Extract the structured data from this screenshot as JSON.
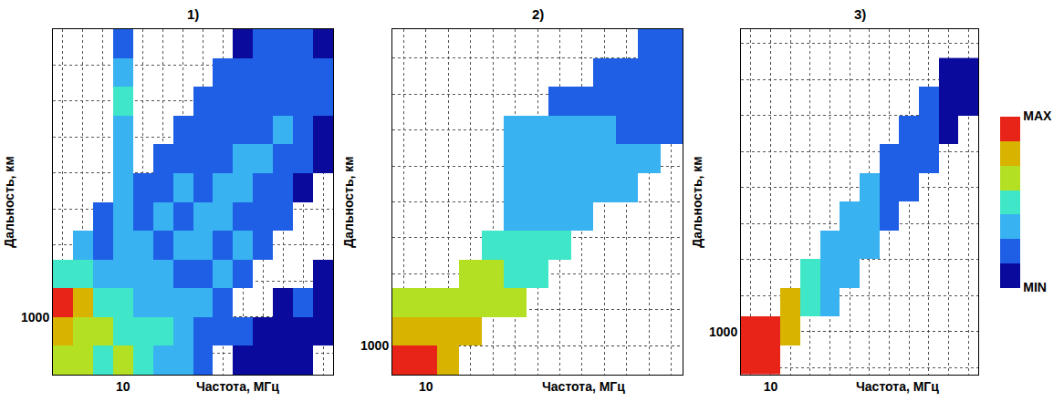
{
  "chart_data": [
    {
      "type": "heatmap",
      "title": "1)",
      "xlabel": "Частота, МГц",
      "ylabel": "Дальность, км",
      "xlim": [
        6.5,
        20.5
      ],
      "ylim": [
        600,
        3000
      ],
      "xticks": [
        10
      ],
      "yticks": [
        1000
      ],
      "grid": true,
      "x": [
        7,
        8,
        9,
        10,
        11,
        12,
        13,
        14,
        15,
        16,
        17,
        18,
        19,
        20
      ],
      "y": [
        700,
        900,
        1100,
        1300,
        1500,
        1700,
        1900,
        2100,
        2300,
        2500,
        2700,
        2900
      ],
      "z": [
        [
          5,
          5,
          4,
          5,
          4,
          3,
          3,
          2,
          null,
          1,
          1,
          1,
          1,
          null
        ],
        [
          6,
          5,
          5,
          4,
          4,
          4,
          3,
          2,
          2,
          2,
          1,
          1,
          1,
          1
        ],
        [
          7,
          6,
          4,
          4,
          3,
          3,
          3,
          3,
          2,
          null,
          null,
          1,
          2,
          1
        ],
        [
          4,
          4,
          3,
          3,
          3,
          3,
          2,
          2,
          3,
          2,
          null,
          null,
          null,
          1
        ],
        [
          null,
          3,
          2,
          3,
          3,
          2,
          3,
          3,
          2,
          3,
          2,
          null,
          null,
          null
        ],
        [
          null,
          null,
          2,
          3,
          2,
          3,
          2,
          3,
          3,
          2,
          2,
          2,
          null,
          null
        ],
        [
          null,
          null,
          null,
          3,
          2,
          2,
          3,
          2,
          3,
          3,
          2,
          2,
          1,
          null
        ],
        [
          null,
          null,
          null,
          3,
          null,
          2,
          2,
          2,
          2,
          3,
          3,
          2,
          2,
          1
        ],
        [
          null,
          null,
          null,
          3,
          null,
          null,
          2,
          2,
          2,
          2,
          2,
          3,
          2,
          1
        ],
        [
          null,
          null,
          null,
          4,
          null,
          null,
          null,
          2,
          2,
          2,
          2,
          2,
          2,
          2
        ],
        [
          null,
          null,
          null,
          3,
          null,
          null,
          null,
          null,
          2,
          2,
          2,
          2,
          2,
          2
        ],
        [
          null,
          null,
          null,
          2,
          null,
          null,
          null,
          null,
          null,
          1,
          2,
          2,
          2,
          1
        ]
      ]
    },
    {
      "type": "heatmap",
      "title": "2)",
      "xlabel": "Частота, МГц",
      "ylabel": "Дальность, км",
      "xlim": [
        8.5,
        21.5
      ],
      "ylim": [
        800,
        3200
      ],
      "xticks": [
        10
      ],
      "yticks": [
        1000
      ],
      "grid": true,
      "x": [
        9,
        10,
        11,
        12,
        13,
        14,
        15,
        16,
        17,
        18,
        19,
        20,
        21
      ],
      "y": [
        900,
        1100,
        1300,
        1500,
        1700,
        1900,
        2100,
        2300,
        2500,
        2700,
        2900,
        3100
      ],
      "z": [
        [
          7,
          7,
          6,
          null,
          null,
          null,
          null,
          null,
          null,
          null,
          null,
          null,
          null
        ],
        [
          6,
          6,
          6,
          6,
          null,
          null,
          null,
          null,
          null,
          null,
          null,
          null,
          null
        ],
        [
          5,
          5,
          5,
          5,
          5,
          5,
          null,
          null,
          null,
          null,
          null,
          null,
          null
        ],
        [
          null,
          null,
          null,
          5,
          5,
          4,
          4,
          null,
          null,
          null,
          null,
          null,
          null
        ],
        [
          null,
          null,
          null,
          null,
          4,
          4,
          4,
          4,
          null,
          null,
          null,
          null,
          null
        ],
        [
          null,
          null,
          null,
          null,
          null,
          3,
          3,
          3,
          3,
          null,
          null,
          null,
          null
        ],
        [
          null,
          null,
          null,
          null,
          null,
          3,
          3,
          3,
          3,
          3,
          3,
          null,
          null
        ],
        [
          null,
          null,
          null,
          null,
          null,
          3,
          3,
          3,
          3,
          3,
          3,
          3,
          null
        ],
        [
          null,
          null,
          null,
          null,
          null,
          3,
          3,
          3,
          3,
          3,
          2,
          2,
          2
        ],
        [
          null,
          null,
          null,
          null,
          null,
          null,
          null,
          2,
          2,
          2,
          2,
          2,
          2
        ],
        [
          null,
          null,
          null,
          null,
          null,
          null,
          null,
          null,
          null,
          2,
          2,
          2,
          2
        ],
        [
          null,
          null,
          null,
          null,
          null,
          null,
          null,
          null,
          null,
          null,
          null,
          2,
          2
        ]
      ]
    },
    {
      "type": "heatmap",
      "title": "3)",
      "xlabel": "Частота, МГц",
      "ylabel": "Дальность, км",
      "xlim": [
        8.5,
        20.5
      ],
      "ylim": [
        700,
        3100
      ],
      "xticks": [
        10
      ],
      "yticks": [
        1000
      ],
      "grid": true,
      "x": [
        9,
        10,
        11,
        12,
        13,
        14,
        15,
        16,
        17,
        18,
        19,
        20
      ],
      "y": [
        800,
        1000,
        1200,
        1400,
        1600,
        1800,
        2000,
        2200,
        2400,
        2600,
        2800
      ],
      "z": [
        [
          7,
          7,
          null,
          null,
          null,
          null,
          null,
          null,
          null,
          null,
          null,
          null
        ],
        [
          7,
          7,
          6,
          null,
          null,
          null,
          null,
          null,
          null,
          null,
          null,
          null
        ],
        [
          null,
          null,
          6,
          4,
          3,
          null,
          null,
          null,
          null,
          null,
          null,
          null
        ],
        [
          null,
          null,
          null,
          4,
          3,
          3,
          null,
          null,
          null,
          null,
          null,
          null
        ],
        [
          null,
          null,
          null,
          null,
          3,
          3,
          3,
          null,
          null,
          null,
          null,
          null
        ],
        [
          null,
          null,
          null,
          null,
          null,
          3,
          3,
          2,
          null,
          null,
          null,
          null
        ],
        [
          null,
          null,
          null,
          null,
          null,
          null,
          3,
          2,
          2,
          null,
          null,
          null
        ],
        [
          null,
          null,
          null,
          null,
          null,
          null,
          null,
          2,
          2,
          2,
          null,
          null
        ],
        [
          null,
          null,
          null,
          null,
          null,
          null,
          null,
          null,
          2,
          2,
          1,
          null
        ],
        [
          null,
          null,
          null,
          null,
          null,
          null,
          null,
          null,
          null,
          2,
          1,
          1
        ],
        [
          null,
          null,
          null,
          null,
          null,
          null,
          null,
          null,
          null,
          null,
          1,
          1
        ]
      ],
      "colorbar": {
        "range": [
          0.5,
          7.5
        ],
        "ticks": [
          {
            "value": 7.5,
            "label": "MAX"
          },
          {
            "value": 0.5,
            "label": "MIN"
          }
        ],
        "colors": [
          "#0a0a9c",
          "#1f5fe6",
          "#38b2f0",
          "#40e6c8",
          "#b4e024",
          "#d8b400",
          "#e82418"
        ]
      }
    }
  ]
}
